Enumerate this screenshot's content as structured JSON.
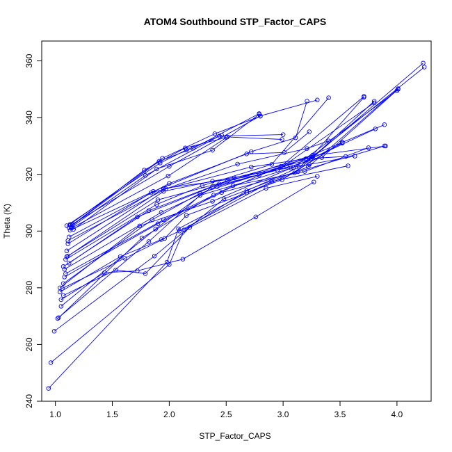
{
  "chart_data": {
    "type": "scatter",
    "title": "ATOM4 Southbound STP_Factor_CAPS",
    "xlabel": "STP_Factor_CAPS",
    "ylabel": "Theta (K)",
    "xlim": [
      0.88,
      4.3
    ],
    "ylim": [
      240,
      367
    ],
    "xticks": [
      "1.0",
      "1.5",
      "2.0",
      "2.5",
      "3.0",
      "3.5",
      "4.0"
    ],
    "yticks": [
      "240",
      "260",
      "280",
      "300",
      "320",
      "340",
      "360"
    ],
    "grid": false,
    "legend": "none",
    "colors": {
      "series": "#0000ff",
      "axis": "#000000",
      "background": "#ffffff"
    },
    "point_style": "open-circle",
    "profiles": [
      {
        "points": [
          [
            0.94,
            244.5
          ],
          [
            1.98,
            289.0
          ],
          [
            2.08,
            300.8
          ],
          [
            2.68,
            313.5
          ],
          [
            3.1,
            320.5
          ],
          [
            4.23,
            359.2
          ]
        ]
      },
      {
        "points": [
          [
            0.96,
            253.6
          ],
          [
            2.0,
            288.2
          ],
          [
            2.13,
            300.4
          ],
          [
            2.68,
            314.2
          ],
          [
            3.14,
            322.5
          ],
          [
            4.24,
            357.8
          ]
        ]
      },
      {
        "points": [
          [
            0.99,
            264.7
          ],
          [
            1.87,
            291.2
          ],
          [
            2.48,
            311.4
          ],
          [
            3.22,
            322.6
          ],
          [
            4.01,
            350.2
          ]
        ]
      },
      {
        "points": [
          [
            1.02,
            269.2
          ],
          [
            1.82,
            296.3
          ],
          [
            2.27,
            312.6
          ],
          [
            3.09,
            322.4
          ],
          [
            4.0,
            349.5
          ]
        ]
      },
      {
        "points": [
          [
            1.03,
            269.5
          ],
          [
            1.76,
            297.6
          ],
          [
            2.39,
            312.7
          ],
          [
            2.98,
            322.8
          ],
          [
            3.71,
            347.5
          ]
        ]
      },
      {
        "points": [
          [
            1.05,
            273.5
          ],
          [
            1.88,
            300.7
          ],
          [
            2.38,
            315.7
          ],
          [
            2.95,
            321.5
          ],
          [
            3.8,
            345.2
          ]
        ]
      },
      {
        "points": [
          [
            1.05,
            275.8
          ],
          [
            1.43,
            285.3
          ],
          [
            1.72,
            286.0
          ],
          [
            2.12,
            290.1
          ],
          [
            2.76,
            305.0
          ],
          [
            3.27,
            317.3
          ]
        ]
      },
      {
        "points": [
          [
            1.07,
            277.3
          ],
          [
            1.53,
            286.3
          ],
          [
            1.79,
            285.0
          ],
          [
            2.18,
            301.3
          ],
          [
            2.85,
            315.1
          ],
          [
            3.3,
            319.3
          ]
        ]
      },
      {
        "points": [
          [
            1.04,
            278.5
          ],
          [
            1.57,
            291.0
          ],
          [
            1.93,
            297.0
          ],
          [
            2.09,
            300.0
          ],
          [
            2.9,
            317.5
          ],
          [
            3.57,
            323.0
          ]
        ]
      },
      {
        "points": [
          [
            1.06,
            279.8
          ],
          [
            1.61,
            290.4
          ],
          [
            1.96,
            297.4
          ],
          [
            2.15,
            305.5
          ],
          [
            2.99,
            318.1
          ],
          [
            3.52,
            331.3
          ]
        ]
      },
      {
        "points": [
          [
            1.04,
            280.0
          ],
          [
            1.74,
            301.8
          ],
          [
            2.38,
            310.5
          ],
          [
            3.07,
            322.2
          ],
          [
            3.81,
            336.0
          ]
        ]
      },
      {
        "points": [
          [
            1.07,
            281.5
          ],
          [
            1.85,
            304.0
          ],
          [
            2.27,
            313.3
          ],
          [
            3.03,
            323.0
          ],
          [
            3.89,
            337.5
          ]
        ]
      },
      {
        "points": [
          [
            1.08,
            283.8
          ],
          [
            1.9,
            302.6
          ],
          [
            2.46,
            313.6
          ],
          [
            3.13,
            320.9
          ],
          [
            3.89,
            330.0
          ]
        ]
      },
      {
        "points": [
          [
            1.09,
            285.0
          ],
          [
            1.95,
            304.0
          ],
          [
            2.56,
            316.0
          ],
          [
            3.19,
            321.0
          ],
          [
            3.75,
            329.4
          ]
        ]
      },
      {
        "points": [
          [
            1.08,
            286.5
          ],
          [
            1.93,
            306.6
          ],
          [
            2.42,
            315.7
          ],
          [
            3.34,
            325.9
          ],
          [
            4.01,
            350.0
          ]
        ]
      },
      {
        "points": [
          [
            1.07,
            287.5
          ],
          [
            1.82,
            307.2
          ],
          [
            2.57,
            318.7
          ],
          [
            3.26,
            326.0
          ],
          [
            3.8,
            345.8
          ]
        ]
      },
      {
        "points": [
          [
            1.12,
            288.7
          ],
          [
            1.72,
            305.0
          ],
          [
            2.44,
            316.6
          ],
          [
            3.26,
            326.8
          ],
          [
            3.71,
            347.2
          ]
        ]
      },
      {
        "points": [
          [
            1.09,
            290.0
          ],
          [
            1.89,
            309.4
          ],
          [
            2.29,
            316.0
          ],
          [
            2.9,
            323.5
          ],
          [
            3.4,
            347.0
          ]
        ]
      },
      {
        "points": [
          [
            1.1,
            291.0
          ],
          [
            1.9,
            311.0
          ],
          [
            2.51,
            317.6
          ],
          [
            3.24,
            325.3
          ],
          [
            3.52,
            331.0
          ]
        ]
      },
      {
        "points": [
          [
            1.11,
            291.2
          ],
          [
            1.95,
            314.0
          ],
          [
            2.38,
            317.6
          ],
          [
            3.23,
            323.5
          ],
          [
            3.63,
            326.4
          ]
        ]
      },
      {
        "points": [
          [
            1.1,
            293.0
          ],
          [
            1.95,
            315.0
          ],
          [
            2.79,
            319.7
          ],
          [
            3.26,
            326.6
          ],
          [
            3.9,
            330.0
          ]
        ]
      },
      {
        "points": [
          [
            1.11,
            295.5
          ],
          [
            1.84,
            313.5
          ],
          [
            2.72,
            322.6
          ],
          [
            3.2,
            325.5
          ],
          [
            3.55,
            326.3
          ]
        ]
      },
      {
        "points": [
          [
            1.11,
            296.6
          ],
          [
            1.97,
            314.9
          ],
          [
            2.6,
            323.6
          ],
          [
            3.21,
            329.1
          ],
          [
            3.4,
            331.8
          ]
        ]
      },
      {
        "points": [
          [
            1.12,
            297.9
          ],
          [
            2.0,
            316.8
          ],
          [
            2.68,
            327.2
          ],
          [
            3.01,
            327.7
          ],
          [
            3.23,
            335.0
          ]
        ]
      },
      {
        "points": [
          [
            1.13,
            300.3
          ],
          [
            1.86,
            314.0
          ],
          [
            2.72,
            328.0
          ],
          [
            3.11,
            332.9
          ],
          [
            3.21,
            345.8
          ]
        ]
      },
      {
        "points": [
          [
            1.14,
            301.0
          ],
          [
            1.99,
            319.4
          ],
          [
            2.51,
            333.2
          ],
          [
            2.99,
            332.3
          ]
        ]
      },
      {
        "points": [
          [
            1.13,
            302.0
          ],
          [
            2.0,
            322.8
          ],
          [
            2.8,
            340.6
          ],
          [
            3.3,
            346.2
          ]
        ]
      },
      {
        "points": [
          [
            1.12,
            301.2
          ],
          [
            1.91,
            324.6
          ],
          [
            2.21,
            329.2
          ],
          [
            2.79,
            341.4
          ]
        ]
      },
      {
        "points": [
          [
            1.16,
            300.6
          ],
          [
            1.89,
            321.9
          ],
          [
            2.38,
            328.5
          ],
          [
            2.79,
            341.2
          ]
        ]
      },
      {
        "points": [
          [
            1.14,
            301.4
          ],
          [
            1.79,
            319.6
          ],
          [
            2.44,
            333.5
          ],
          [
            3.0,
            334.0
          ]
        ]
      },
      {
        "points": [
          [
            1.15,
            302.2
          ],
          [
            1.78,
            321.5
          ],
          [
            2.14,
            329.3
          ],
          [
            2.5,
            333.0
          ]
        ]
      },
      {
        "points": [
          [
            1.13,
            302.4
          ],
          [
            1.94,
            325.7
          ],
          [
            2.4,
            334.3
          ],
          [
            2.8,
            340.5
          ]
        ]
      },
      {
        "points": [
          [
            1.1,
            301.9
          ],
          [
            1.92,
            324.0
          ],
          [
            2.15,
            328.6
          ],
          [
            2.46,
            333.8
          ]
        ]
      }
    ]
  }
}
